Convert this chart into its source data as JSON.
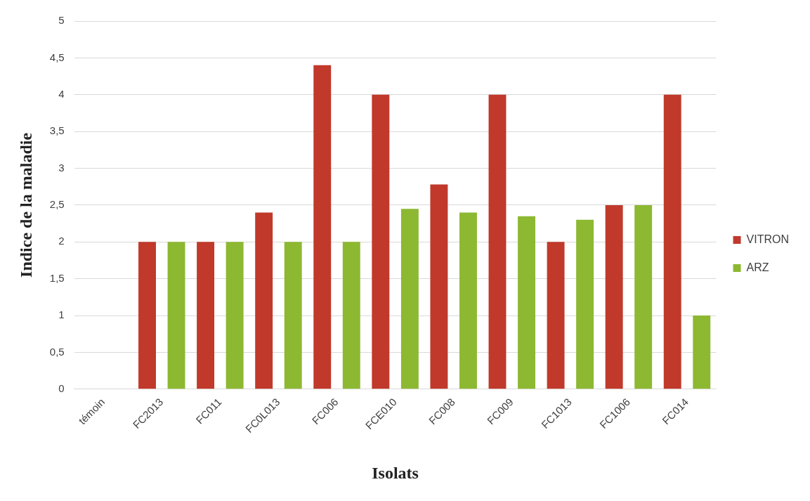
{
  "chart_data": {
    "type": "bar",
    "xlabel": "Isolats",
    "ylabel": "Indice de la maladie",
    "categories": [
      "témoin",
      "FC2013",
      "FC011",
      "FC0L013",
      "FC006",
      "FCE010",
      "FC008",
      "FC009",
      "FC1013",
      "FC1006",
      "FC014"
    ],
    "series": [
      {
        "name": "VITRON",
        "color": "#c0392b",
        "values": [
          0,
          2,
          2,
          2.4,
          4.4,
          4,
          2.78,
          4,
          2,
          2.5,
          4
        ]
      },
      {
        "name": "ARZ",
        "color": "#8db832",
        "values": [
          0,
          2,
          2,
          2,
          2,
          2.45,
          2.4,
          2.35,
          2.3,
          2.5,
          1
        ]
      }
    ],
    "ylim": [
      0,
      5
    ],
    "yticks": [
      0,
      {
        "value": 0.5,
        "label": "0,5"
      },
      1,
      {
        "value": 1.5,
        "label": "1,5"
      },
      2,
      {
        "value": 2.5,
        "label": "2,5"
      },
      3,
      {
        "value": 3.5,
        "label": "3,5"
      },
      4,
      {
        "value": 4.5,
        "label": "4,5"
      },
      5
    ],
    "grid": "y",
    "legend": "right"
  }
}
